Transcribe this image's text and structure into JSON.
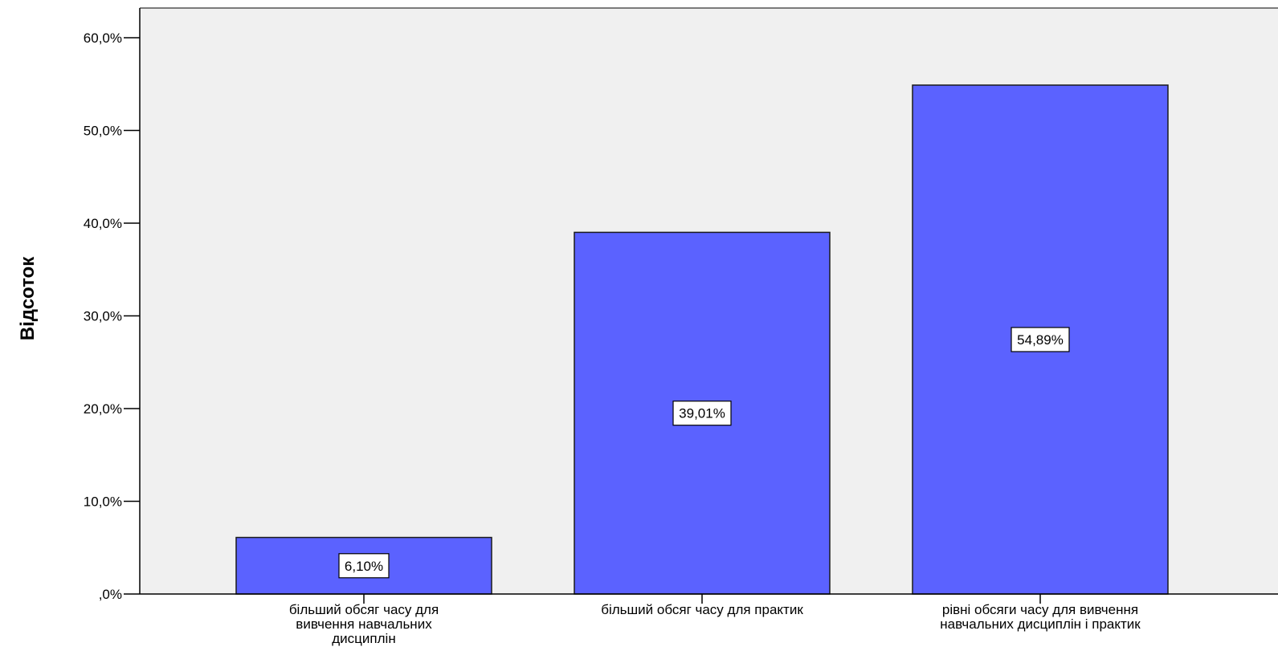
{
  "chart_data": {
    "type": "bar",
    "title": "",
    "xlabel": "",
    "ylabel": "Відсоток",
    "categories": [
      [
        "більший обсяг часу для",
        "вивчення навчальних",
        "дисциплін"
      ],
      [
        "більший обсяг часу для практик"
      ],
      [
        "рівні обсяги часу для вивчення",
        "навчальних дисциплін і практик"
      ]
    ],
    "values": [
      6.1,
      39.01,
      54.89
    ],
    "data_labels": [
      "6,10%",
      "39,01%",
      "54,89%"
    ],
    "ylim": [
      0,
      60
    ],
    "yticks": [
      0,
      10,
      20,
      30,
      40,
      50,
      60
    ],
    "ytick_labels": [
      ",0%",
      "10,0%",
      "20,0%",
      "30,0%",
      "40,0%",
      "50,0%",
      "60,0%"
    ],
    "grid": false,
    "legend": "none",
    "colors": {
      "bar_fill": "#5b62ff",
      "bar_stroke": "#1a1a1a",
      "plot_background": "#f0f0f0",
      "axis": "#000000",
      "label_box_fill": "#ffffff"
    }
  }
}
